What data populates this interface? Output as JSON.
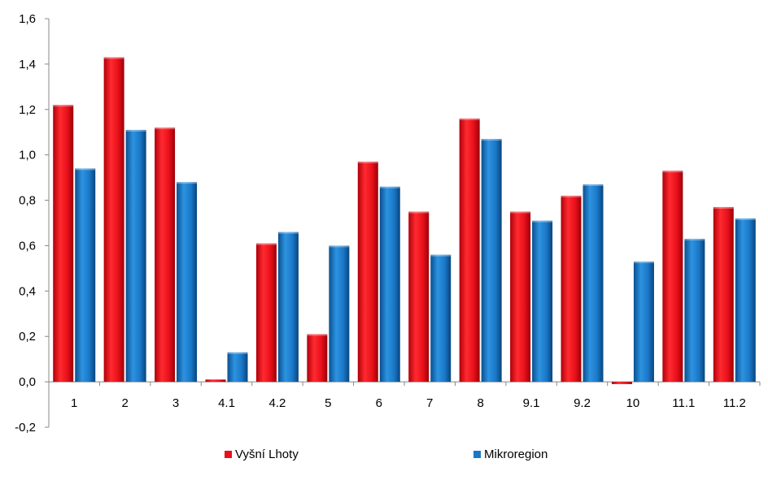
{
  "chart_data": {
    "type": "bar",
    "title": "",
    "xlabel": "",
    "ylabel": "",
    "categories": [
      "1",
      "2",
      "3",
      "4.1",
      "4.2",
      "5",
      "6",
      "7",
      "8",
      "9.1",
      "9.2",
      "10",
      "11.1",
      "11.2"
    ],
    "series": [
      {
        "name": "Vyšní Lhoty",
        "color": "#e8101a",
        "values": [
          1.22,
          1.43,
          1.12,
          0.01,
          0.61,
          0.21,
          0.97,
          0.75,
          1.16,
          0.75,
          0.82,
          -0.01,
          0.93,
          0.77
        ]
      },
      {
        "name": "Mikroregion",
        "color": "#1a78c8",
        "values": [
          0.94,
          1.11,
          0.88,
          0.13,
          0.66,
          0.6,
          0.86,
          0.56,
          1.07,
          0.71,
          0.87,
          0.53,
          0.63,
          0.72
        ]
      }
    ],
    "ylim": [
      -0.2,
      1.6
    ],
    "yticks": [
      "-0,2",
      "0,0",
      "0,2",
      "0,4",
      "0,6",
      "0,8",
      "1,0",
      "1,2",
      "1,4",
      "1,6"
    ],
    "grid": false,
    "legend_position": "bottom"
  }
}
